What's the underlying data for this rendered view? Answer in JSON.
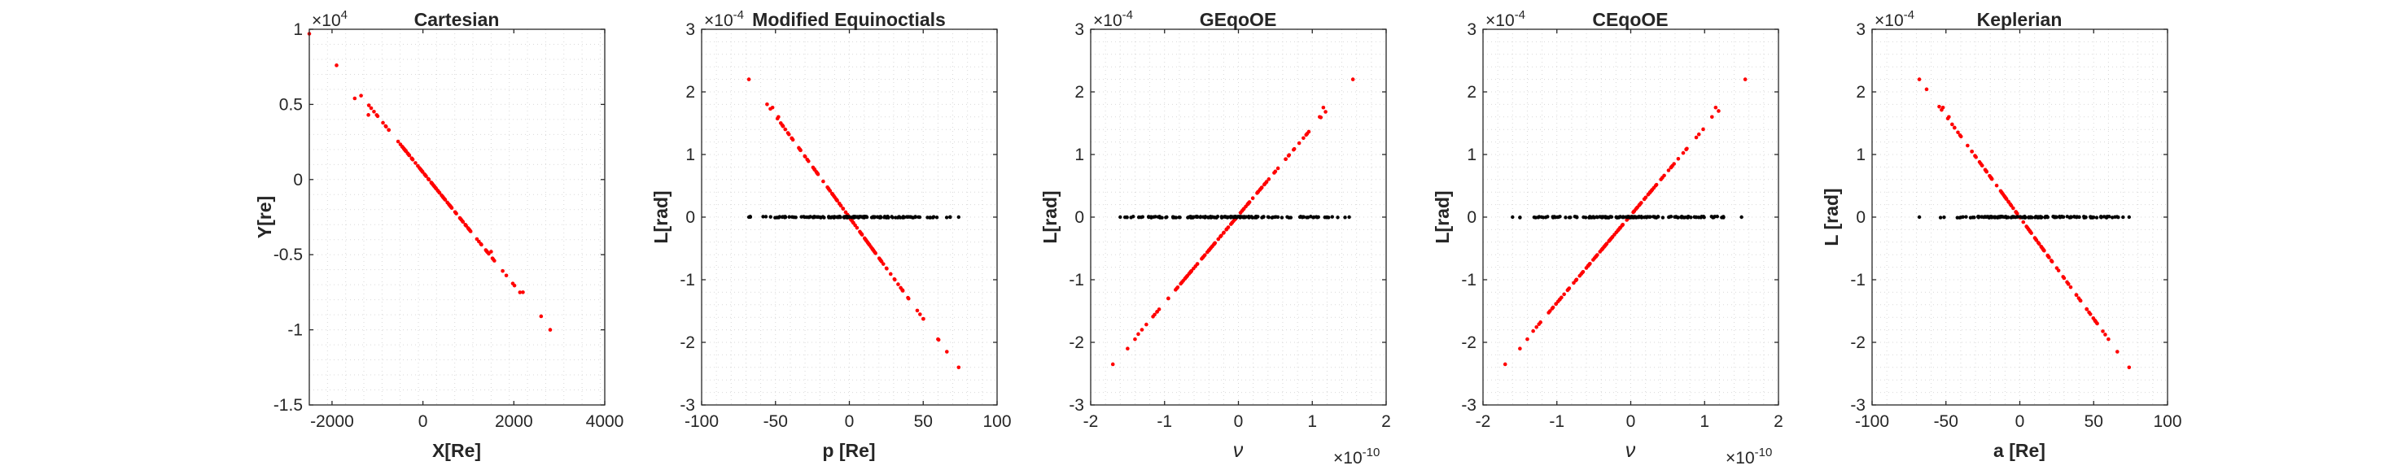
{
  "figure": {
    "background": "#ffffff",
    "axis_color": "#262626",
    "grid_color": "#d9d9d9",
    "series_colors": {
      "red": "#ff0000",
      "black": "#000000"
    }
  },
  "chart_data": [
    {
      "type": "scatter",
      "title": "Cartesian",
      "xlabel": "X[Re]",
      "ylabel": "Y[re]",
      "xlim": [
        -2500,
        4000
      ],
      "ylim": [
        -15000,
        10000
      ],
      "xticks": [
        "-2000",
        "0",
        "2000",
        "4000"
      ],
      "yticks": [
        "1",
        "0.5",
        "0",
        "-0.5",
        "-1",
        "-1.5"
      ],
      "y_exponent": "×10",
      "y_exponent_power": "4",
      "grid": true,
      "series": [
        {
          "color": "#ff0000",
          "line": {
            "from": [
              -1900,
              7600
            ],
            "to": [
              2800,
              -10000
            ]
          },
          "count": 110,
          "extra_points": [
            [
              -2500,
              9700
            ],
            [
              -1500,
              5400
            ],
            [
              -1200,
              4300
            ],
            [
              1500,
              -4800
            ],
            [
              2200,
              -7500
            ],
            [
              2600,
              -9100
            ]
          ]
        }
      ]
    },
    {
      "type": "scatter",
      "title": "Modified Equinoctials",
      "xlabel": "p [Re]",
      "ylabel": "L[rad]",
      "xlim": [
        -100,
        100
      ],
      "ylim": [
        -3,
        3
      ],
      "xticks": [
        "-100",
        "-50",
        "0",
        "50",
        "100"
      ],
      "yticks": [
        "3",
        "2",
        "1",
        "0",
        "-1",
        "-2",
        "-3"
      ],
      "y_exponent": "×10",
      "y_exponent_power": "-4",
      "grid": true,
      "series": [
        {
          "color": "#ff0000",
          "line": {
            "from": [
              -68,
              2.2
            ],
            "to": [
              74,
              -2.4
            ]
          },
          "count": 110,
          "extra_points": [
            [
              -52,
              1.75
            ],
            [
              -48,
              1.6
            ],
            [
              60,
              -1.95
            ],
            [
              66,
              -2.15
            ]
          ]
        },
        {
          "color": "#000000",
          "flat": {
            "y": 0,
            "xmin": -68,
            "xmax": 74
          },
          "count": 150
        }
      ]
    },
    {
      "type": "scatter",
      "title": "GEqoOE",
      "xlabel": "ν",
      "ylabel": "L[rad]",
      "xlim": [
        -2,
        2
      ],
      "ylim": [
        -3,
        3
      ],
      "xticks": [
        "-2",
        "-1",
        "0",
        "1",
        "2"
      ],
      "yticks": [
        "3",
        "2",
        "1",
        "0",
        "-1",
        "-2",
        "-3"
      ],
      "x_exponent": "×10",
      "x_exponent_power": "-10",
      "y_exponent": "×10",
      "y_exponent_power": "-4",
      "grid": true,
      "series": [
        {
          "color": "#ff0000",
          "line": {
            "from": [
              -1.7,
              -2.35
            ],
            "to": [
              1.55,
              2.2
            ]
          },
          "count": 110,
          "extra_points": [
            [
              1.15,
              1.75
            ],
            [
              1.1,
              1.6
            ],
            [
              -1.4,
              -1.95
            ],
            [
              -1.5,
              -2.1
            ]
          ]
        },
        {
          "color": "#000000",
          "flat": {
            "y": 0,
            "xmin": -1.6,
            "xmax": 1.5
          },
          "count": 150
        }
      ]
    },
    {
      "type": "scatter",
      "title": "CEqoOE",
      "xlabel": "ν",
      "ylabel": "L[rad]",
      "xlim": [
        -2,
        2
      ],
      "ylim": [
        -3,
        3
      ],
      "xticks": [
        "-2",
        "-1",
        "0",
        "1",
        "2"
      ],
      "yticks": [
        "3",
        "2",
        "1",
        "0",
        "-1",
        "-2",
        "-3"
      ],
      "x_exponent": "×10",
      "x_exponent_power": "-10",
      "y_exponent": "×10",
      "y_exponent_power": "-4",
      "grid": true,
      "series": [
        {
          "color": "#ff0000",
          "line": {
            "from": [
              -1.7,
              -2.35
            ],
            "to": [
              1.55,
              2.2
            ]
          },
          "count": 110,
          "extra_points": [
            [
              1.15,
              1.75
            ],
            [
              1.1,
              1.6
            ],
            [
              -1.4,
              -1.95
            ],
            [
              -1.5,
              -2.1
            ]
          ]
        },
        {
          "color": "#000000",
          "flat": {
            "y": 0,
            "xmin": -1.6,
            "xmax": 1.5
          },
          "count": 150
        }
      ]
    },
    {
      "type": "scatter",
      "title": "Keplerian",
      "xlabel": "a [Re]",
      "ylabel": "L [rad]",
      "xlim": [
        -100,
        100
      ],
      "ylim": [
        -3,
        3
      ],
      "xticks": [
        "-100",
        "-50",
        "0",
        "50",
        "100"
      ],
      "yticks": [
        "3",
        "2",
        "1",
        "0",
        "-1",
        "-2",
        "-3"
      ],
      "y_exponent": "×10",
      "y_exponent_power": "-4",
      "grid": true,
      "series": [
        {
          "color": "#ff0000",
          "line": {
            "from": [
              -68,
              2.2
            ],
            "to": [
              74,
              -2.4
            ]
          },
          "count": 110,
          "extra_points": [
            [
              -52,
              1.75
            ],
            [
              -48,
              1.6
            ],
            [
              60,
              -1.95
            ],
            [
              66,
              -2.15
            ]
          ]
        },
        {
          "color": "#000000",
          "flat": {
            "y": 0,
            "xmin": -68,
            "xmax": 74
          },
          "count": 150
        }
      ]
    }
  ]
}
